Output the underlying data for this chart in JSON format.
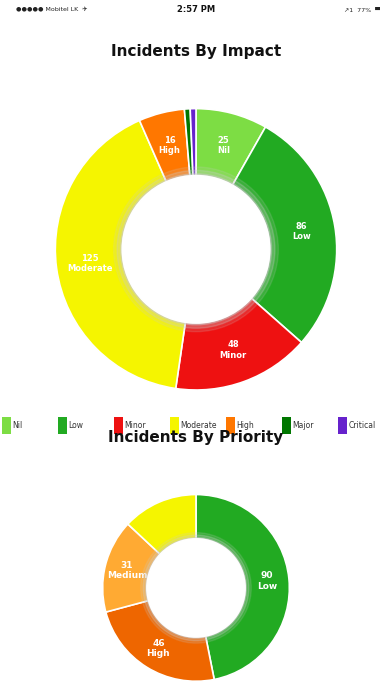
{
  "header_color": "#4d5f70",
  "bg_color": "#ffffff",
  "statusbar_bg": "#e8e8e8",
  "divider_color": "#dddddd",
  "chart1_title": "Incidents By Impact",
  "chart1_labels": [
    "Nil",
    "Low",
    "Minor",
    "Moderate",
    "High",
    "Major",
    "Critical"
  ],
  "chart1_values": [
    25,
    86,
    48,
    125,
    16,
    2,
    2
  ],
  "chart1_colors": [
    "#7ddd44",
    "#22aa22",
    "#ee1111",
    "#f5f500",
    "#ff7700",
    "#007700",
    "#6622cc"
  ],
  "chart2_title": "Incidents By Priority",
  "chart2_values": [
    90,
    46,
    31,
    25
  ],
  "chart2_labels": [
    "Low",
    "High",
    "Medium",
    ""
  ],
  "chart2_colors": [
    "#22aa22",
    "#ee6600",
    "#ffaa33",
    "#f5f500"
  ],
  "legend_labels": [
    "Nil",
    "Low",
    "Minor",
    "Moderate",
    "High",
    "Major",
    "Critical"
  ],
  "legend_colors": [
    "#7ddd44",
    "#22aa22",
    "#ee1111",
    "#f5f500",
    "#ff7700",
    "#007700",
    "#6622cc"
  ]
}
